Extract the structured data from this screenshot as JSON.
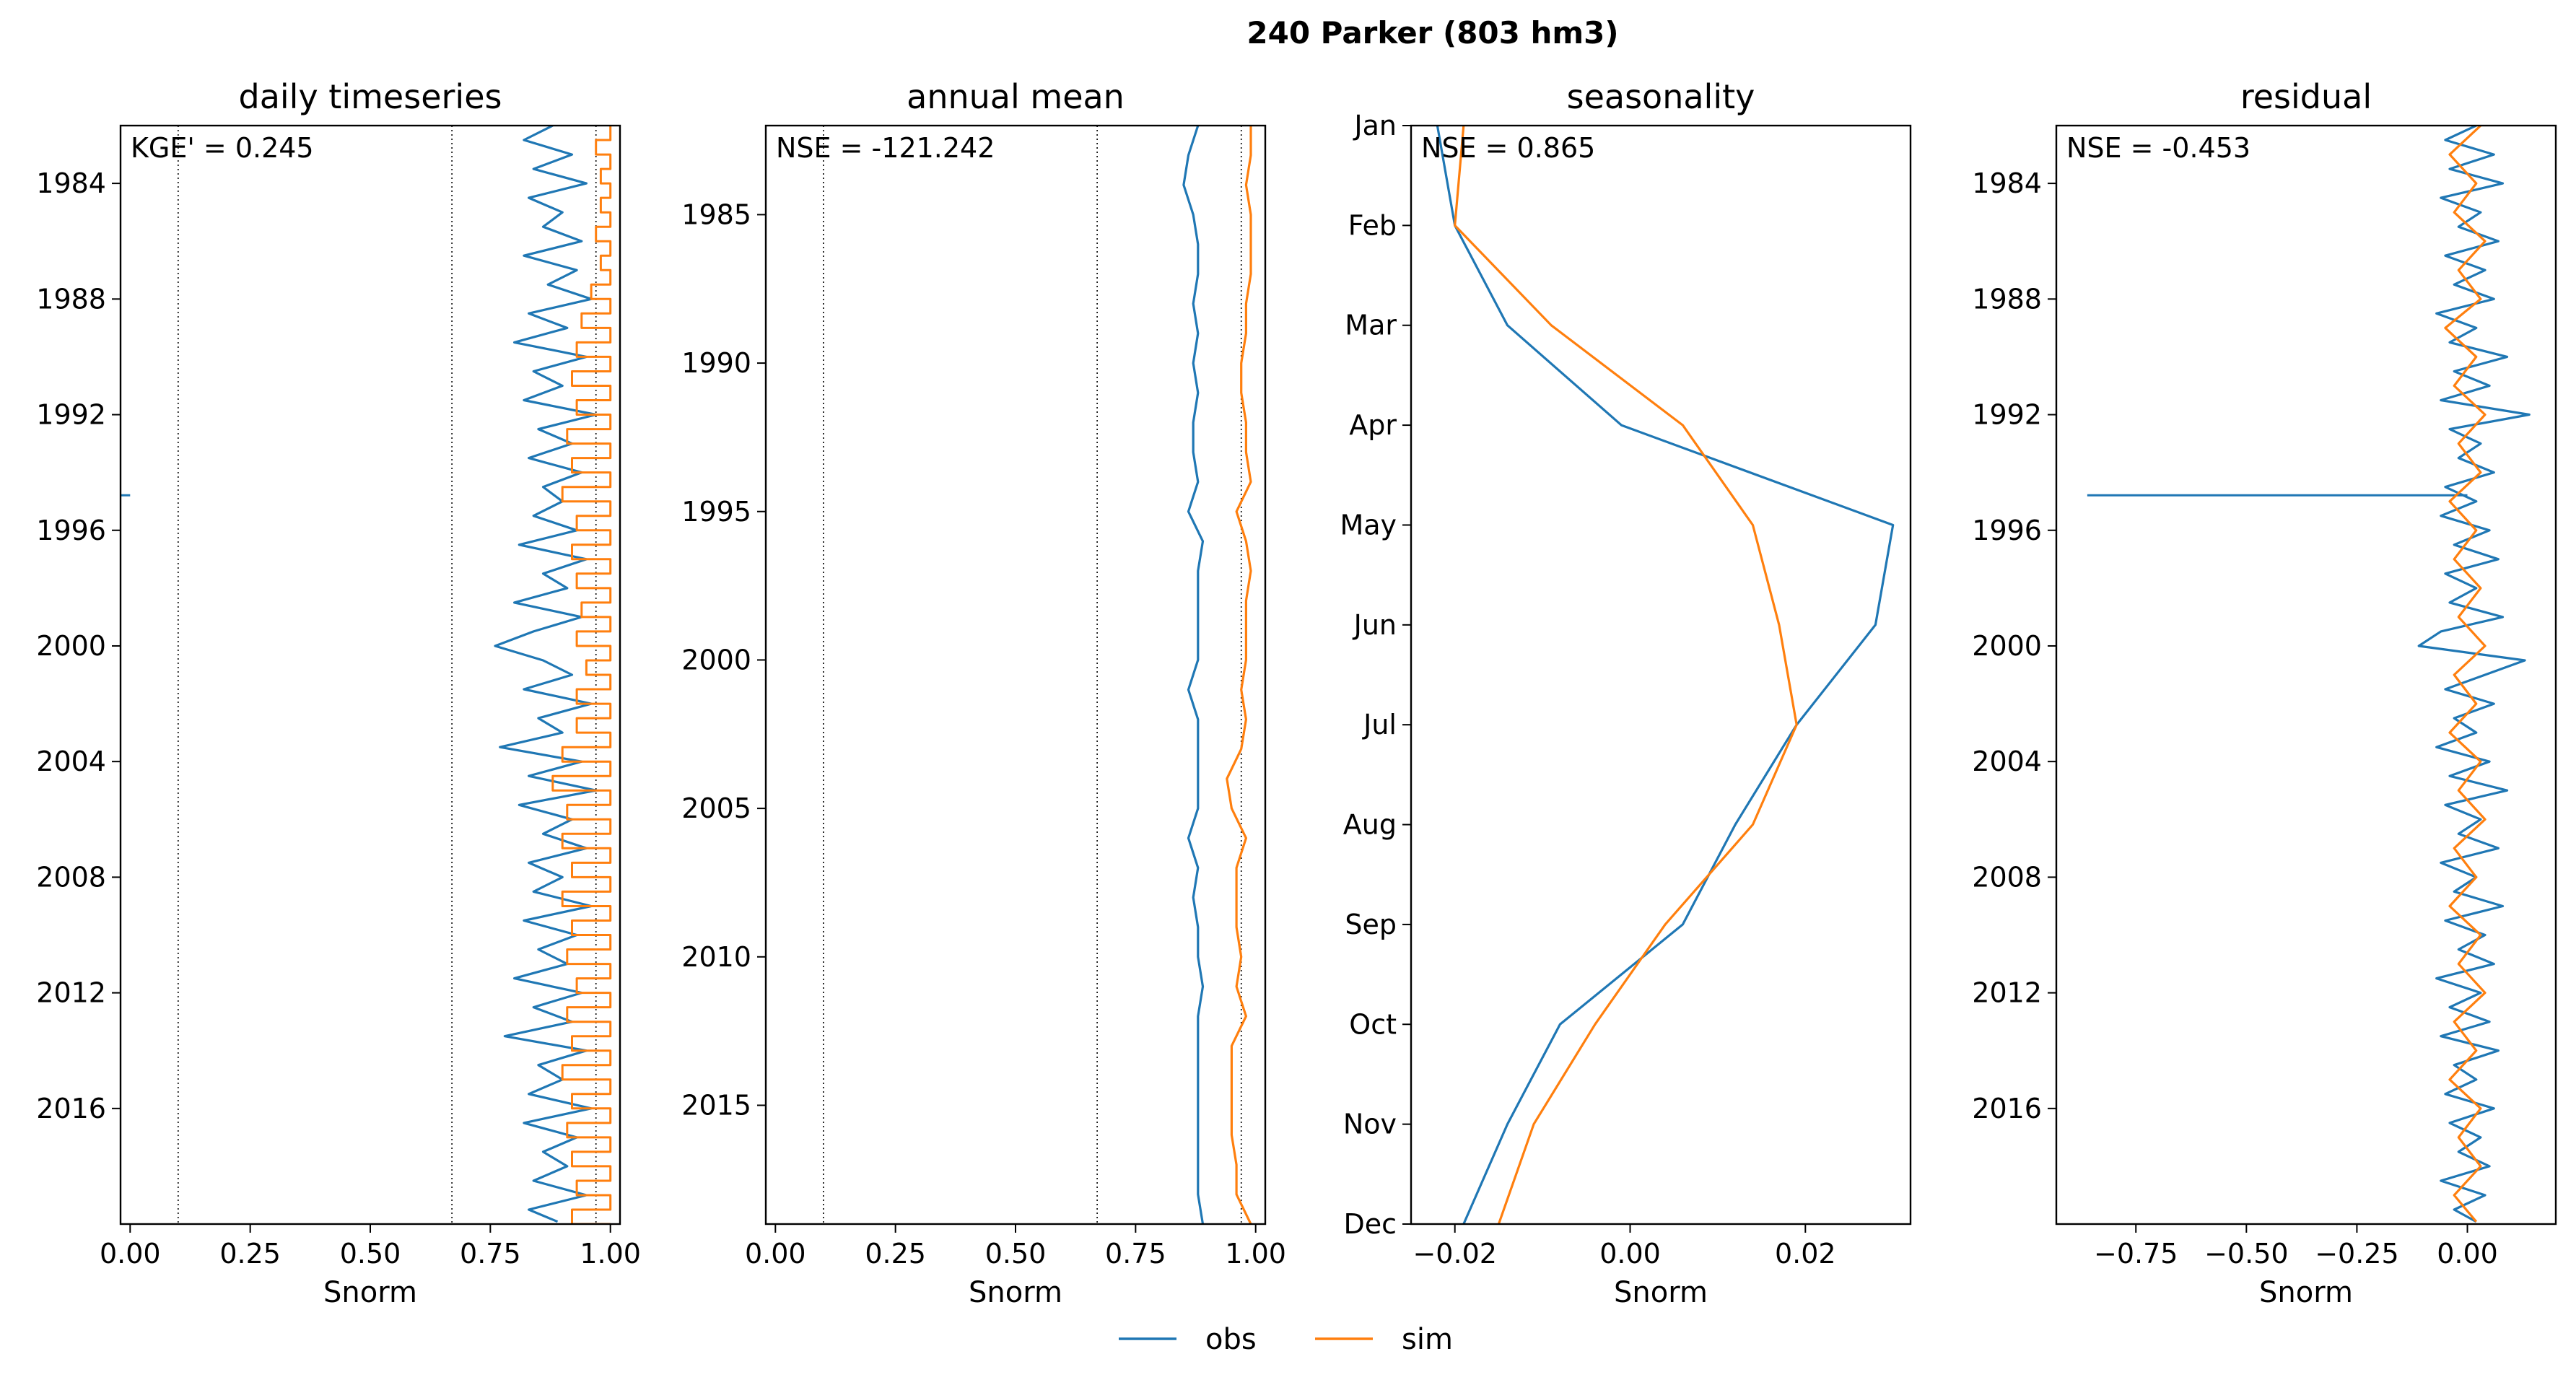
{
  "figure": {
    "suptitle": "240  Parker (803 hm3)",
    "legend": {
      "position": "bottom-center",
      "items": [
        "obs",
        "sim"
      ]
    },
    "colors": {
      "obs": "#1f77b4",
      "sim": "#ff7f0e"
    }
  },
  "chart_data": [
    {
      "type": "line",
      "title": "daily timeseries",
      "xlabel": "Snorm",
      "ylabel": "",
      "metric": "KGE' = 0.245",
      "xlim": [
        -0.02,
        1.02
      ],
      "ylim": [
        "2019-12-31",
        "1982-01-01"
      ],
      "xticks": [
        "0.00",
        "0.25",
        "0.50",
        "0.75",
        "1.00"
      ],
      "yticks": [
        "1984",
        "1988",
        "1992",
        "1996",
        "2000",
        "2004",
        "2008",
        "2012",
        "2016"
      ],
      "vlines": [
        0.1,
        0.67,
        0.97
      ],
      "series": [
        {
          "name": "obs",
          "y": [
            "1982-01",
            "1982-07",
            "1983-01",
            "1983-07",
            "1984-01",
            "1984-07",
            "1985-01",
            "1985-07",
            "1986-01",
            "1986-07",
            "1987-01",
            "1987-07",
            "1988-01",
            "1988-07",
            "1989-01",
            "1989-07",
            "1990-01",
            "1990-07",
            "1991-01",
            "1991-07",
            "1992-01",
            "1992-07",
            "1993-01",
            "1993-07",
            "1994-01",
            "1994-07",
            "1995-01",
            "1995-07",
            "1996-01",
            "1996-07",
            "1997-01",
            "1997-07",
            "1998-01",
            "1998-07",
            "1999-01",
            "1999-07",
            "2000-01",
            "2000-07",
            "2001-01",
            "2001-07",
            "2002-01",
            "2002-07",
            "2003-01",
            "2003-07",
            "2004-01",
            "2004-07",
            "2005-01",
            "2005-07",
            "2006-01",
            "2006-07",
            "2007-01",
            "2007-07",
            "2008-01",
            "2008-07",
            "2009-01",
            "2009-07",
            "2010-01",
            "2010-07",
            "2011-01",
            "2011-07",
            "2012-01",
            "2012-07",
            "2013-01",
            "2013-07",
            "2014-01",
            "2014-07",
            "2015-01",
            "2015-07",
            "2016-01",
            "2016-07",
            "2017-01",
            "2017-07",
            "2018-01",
            "2018-07",
            "2019-01",
            "2019-07",
            "2019-12"
          ],
          "x": [
            0.88,
            0.82,
            0.92,
            0.84,
            0.95,
            0.83,
            0.9,
            0.86,
            0.94,
            0.82,
            0.93,
            0.87,
            0.96,
            0.83,
            0.91,
            0.8,
            0.95,
            0.84,
            0.9,
            0.82,
            0.97,
            0.85,
            0.92,
            0.83,
            0.94,
            0.86,
            0.9,
            0.84,
            0.93,
            0.81,
            0.95,
            0.86,
            0.91,
            0.8,
            0.94,
            0.84,
            0.76,
            0.86,
            0.92,
            0.82,
            0.96,
            0.85,
            0.9,
            0.77,
            0.94,
            0.83,
            0.97,
            0.81,
            0.92,
            0.86,
            0.95,
            0.83,
            0.9,
            0.84,
            0.96,
            0.82,
            0.93,
            0.85,
            0.91,
            0.8,
            0.94,
            0.84,
            0.92,
            0.78,
            0.95,
            0.85,
            0.9,
            0.83,
            0.96,
            0.82,
            0.93,
            0.86,
            0.91,
            0.84,
            0.95,
            0.83,
            0.89
          ],
          "spike": {
            "date": "1994-10-15",
            "value": -0.02
          }
        },
        {
          "name": "sim",
          "y": [
            "1982",
            "1983",
            "1984",
            "1985",
            "1986",
            "1987",
            "1988",
            "1989",
            "1990",
            "1991",
            "1992",
            "1993",
            "1994",
            "1995",
            "1996",
            "1997",
            "1998",
            "1999",
            "2000",
            "2001",
            "2002",
            "2003",
            "2004",
            "2005",
            "2006",
            "2007",
            "2008",
            "2009",
            "2010",
            "2011",
            "2012",
            "2013",
            "2014",
            "2015",
            "2016",
            "2017",
            "2018",
            "2019"
          ],
          "low": [
            0.97,
            0.98,
            0.98,
            0.97,
            0.98,
            0.96,
            0.94,
            0.93,
            0.92,
            0.93,
            0.91,
            0.92,
            0.9,
            0.93,
            0.92,
            0.93,
            0.94,
            0.93,
            0.95,
            0.93,
            0.93,
            0.9,
            0.88,
            0.91,
            0.9,
            0.92,
            0.9,
            0.92,
            0.91,
            0.93,
            0.91,
            0.92,
            0.9,
            0.92,
            0.91,
            0.92,
            0.93,
            0.92
          ],
          "high": [
            1.0,
            1.0,
            1.0,
            1.0,
            1.0,
            1.0,
            1.0,
            1.0,
            1.0,
            1.0,
            1.0,
            1.0,
            1.0,
            1.0,
            1.0,
            1.0,
            1.0,
            1.0,
            1.0,
            1.0,
            1.0,
            1.0,
            1.0,
            1.0,
            1.0,
            1.0,
            1.0,
            1.0,
            1.0,
            1.0,
            1.0,
            1.0,
            1.0,
            1.0,
            1.0,
            1.0,
            1.0,
            1.0
          ]
        }
      ]
    },
    {
      "type": "line",
      "title": "annual mean",
      "xlabel": "Snorm",
      "ylabel": "",
      "metric": "NSE = -121.242",
      "xlim": [
        -0.02,
        1.02
      ],
      "ylim": [
        2019,
        1982
      ],
      "xticks": [
        "0.00",
        "0.25",
        "0.50",
        "0.75",
        "1.00"
      ],
      "yticks": [
        "1985",
        "1990",
        "1995",
        "2000",
        "2005",
        "2010",
        "2015"
      ],
      "vlines": [
        0.1,
        0.67,
        0.97
      ],
      "series": [
        {
          "name": "obs",
          "y": [
            1982,
            1983,
            1984,
            1985,
            1986,
            1987,
            1988,
            1989,
            1990,
            1991,
            1992,
            1993,
            1994,
            1995,
            1996,
            1997,
            1998,
            1999,
            2000,
            2001,
            2002,
            2003,
            2004,
            2005,
            2006,
            2007,
            2008,
            2009,
            2010,
            2011,
            2012,
            2013,
            2014,
            2015,
            2016,
            2017,
            2018,
            2019
          ],
          "x": [
            0.88,
            0.86,
            0.85,
            0.87,
            0.88,
            0.88,
            0.87,
            0.88,
            0.87,
            0.88,
            0.87,
            0.87,
            0.88,
            0.86,
            0.89,
            0.88,
            0.88,
            0.88,
            0.88,
            0.86,
            0.88,
            0.88,
            0.88,
            0.88,
            0.86,
            0.88,
            0.87,
            0.88,
            0.88,
            0.89,
            0.88,
            0.88,
            0.88,
            0.88,
            0.88,
            0.88,
            0.88,
            0.89
          ]
        },
        {
          "name": "sim",
          "y": [
            1982,
            1983,
            1984,
            1985,
            1986,
            1987,
            1988,
            1989,
            1990,
            1991,
            1992,
            1993,
            1994,
            1995,
            1996,
            1997,
            1998,
            1999,
            2000,
            2001,
            2002,
            2003,
            2004,
            2005,
            2006,
            2007,
            2008,
            2009,
            2010,
            2011,
            2012,
            2013,
            2014,
            2015,
            2016,
            2017,
            2018,
            2019
          ],
          "x": [
            0.99,
            0.99,
            0.98,
            0.99,
            0.99,
            0.99,
            0.98,
            0.98,
            0.97,
            0.97,
            0.98,
            0.98,
            0.99,
            0.96,
            0.98,
            0.99,
            0.98,
            0.98,
            0.98,
            0.97,
            0.98,
            0.97,
            0.94,
            0.95,
            0.98,
            0.96,
            0.96,
            0.96,
            0.97,
            0.96,
            0.98,
            0.95,
            0.95,
            0.95,
            0.95,
            0.96,
            0.96,
            0.99
          ]
        }
      ]
    },
    {
      "type": "line",
      "title": "seasonality",
      "xlabel": "Snorm",
      "ylabel": "",
      "metric": "NSE = 0.865",
      "xlim": [
        -0.025,
        0.032
      ],
      "ylim": [
        "Dec",
        "Jan"
      ],
      "xticks": [
        "−0.02",
        "0.00",
        "0.02"
      ],
      "yticks": [
        "Jan",
        "Feb",
        "Mar",
        "Apr",
        "May",
        "Jun",
        "Jul",
        "Aug",
        "Sep",
        "Oct",
        "Nov",
        "Dec"
      ],
      "categories": [
        "Jan",
        "Feb",
        "Mar",
        "Apr",
        "May",
        "Jun",
        "Jul",
        "Aug",
        "Sep",
        "Oct",
        "Nov",
        "Dec"
      ],
      "series": [
        {
          "name": "obs",
          "values": [
            -0.022,
            -0.02,
            -0.014,
            -0.001,
            0.03,
            0.028,
            0.019,
            0.012,
            0.006,
            -0.008,
            -0.014,
            -0.019
          ]
        },
        {
          "name": "sim",
          "values": [
            -0.019,
            -0.02,
            -0.009,
            0.006,
            0.014,
            0.017,
            0.019,
            0.014,
            0.004,
            -0.004,
            -0.011,
            -0.015
          ]
        }
      ]
    },
    {
      "type": "line",
      "title": "residual",
      "xlabel": "Snorm",
      "ylabel": "",
      "metric": "NSE = -0.453",
      "xlim": [
        -0.93,
        0.2
      ],
      "ylim": [
        "2019-12-31",
        "1982-01-01"
      ],
      "xticks": [
        "−0.75",
        "−0.50",
        "−0.25",
        "0.00"
      ],
      "yticks": [
        "1984",
        "1988",
        "1992",
        "1996",
        "2000",
        "2004",
        "2008",
        "2012",
        "2016"
      ],
      "series": [
        {
          "name": "obs",
          "y": [
            "1982-01",
            "1982-07",
            "1983-01",
            "1983-07",
            "1984-01",
            "1984-07",
            "1985-01",
            "1985-07",
            "1986-01",
            "1986-07",
            "1987-01",
            "1987-07",
            "1988-01",
            "1988-07",
            "1989-01",
            "1989-07",
            "1990-01",
            "1990-07",
            "1991-01",
            "1991-07",
            "1992-01",
            "1992-07",
            "1993-01",
            "1993-07",
            "1994-01",
            "1994-07",
            "1995-01",
            "1995-07",
            "1996-01",
            "1996-07",
            "1997-01",
            "1997-07",
            "1998-01",
            "1998-07",
            "1999-01",
            "1999-07",
            "2000-01",
            "2000-07",
            "2001-01",
            "2001-07",
            "2002-01",
            "2002-07",
            "2003-01",
            "2003-07",
            "2004-01",
            "2004-07",
            "2005-01",
            "2005-07",
            "2006-01",
            "2006-07",
            "2007-01",
            "2007-07",
            "2008-01",
            "2008-07",
            "2009-01",
            "2009-07",
            "2010-01",
            "2010-07",
            "2011-01",
            "2011-07",
            "2012-01",
            "2012-07",
            "2013-01",
            "2013-07",
            "2014-01",
            "2014-07",
            "2015-01",
            "2015-07",
            "2016-01",
            "2016-07",
            "2017-01",
            "2017-07",
            "2018-01",
            "2018-07",
            "2019-01",
            "2019-07",
            "2019-12"
          ],
          "x": [
            0.02,
            -0.05,
            0.06,
            -0.04,
            0.08,
            -0.06,
            0.03,
            -0.02,
            0.07,
            -0.05,
            0.04,
            -0.03,
            0.06,
            -0.07,
            0.02,
            -0.04,
            0.09,
            -0.03,
            0.05,
            -0.06,
            0.14,
            -0.04,
            0.03,
            -0.02,
            0.06,
            -0.05,
            0.02,
            -0.06,
            0.05,
            -0.03,
            0.07,
            -0.05,
            0.02,
            -0.04,
            0.08,
            -0.06,
            -0.11,
            0.13,
            0.04,
            -0.05,
            0.06,
            -0.03,
            0.02,
            -0.07,
            0.05,
            -0.04,
            0.09,
            -0.05,
            0.03,
            -0.02,
            0.07,
            -0.06,
            0.02,
            -0.03,
            0.08,
            -0.05,
            0.04,
            -0.02,
            0.06,
            -0.07,
            0.03,
            -0.04,
            0.05,
            -0.06,
            0.07,
            -0.03,
            0.02,
            -0.05,
            0.06,
            -0.04,
            0.03,
            -0.02,
            0.05,
            -0.06,
            0.04,
            -0.03,
            0.02
          ],
          "spike": {
            "date": "1994-10-15",
            "value": -0.86
          }
        },
        {
          "name": "sim",
          "y": [
            "1982-01",
            "1983-01",
            "1984-01",
            "1985-01",
            "1986-01",
            "1987-01",
            "1988-01",
            "1989-01",
            "1990-01",
            "1991-01",
            "1992-01",
            "1993-01",
            "1994-01",
            "1995-01",
            "1996-01",
            "1997-01",
            "1998-01",
            "1999-01",
            "2000-01",
            "2001-01",
            "2002-01",
            "2003-01",
            "2004-01",
            "2005-01",
            "2006-01",
            "2007-01",
            "2008-01",
            "2009-01",
            "2010-01",
            "2011-01",
            "2012-01",
            "2013-01",
            "2014-01",
            "2015-01",
            "2016-01",
            "2017-01",
            "2018-01",
            "2019-01",
            "2019-12"
          ],
          "x": [
            0.03,
            -0.04,
            0.02,
            -0.03,
            0.04,
            -0.02,
            0.03,
            -0.05,
            0.02,
            -0.03,
            0.04,
            -0.02,
            0.03,
            -0.04,
            0.02,
            -0.03,
            0.03,
            -0.02,
            0.04,
            -0.03,
            0.02,
            -0.04,
            0.03,
            -0.02,
            0.04,
            -0.03,
            0.02,
            -0.04,
            0.03,
            -0.02,
            0.04,
            -0.03,
            0.02,
            -0.04,
            0.03,
            -0.02,
            0.03,
            -0.03,
            0.02
          ]
        }
      ]
    }
  ]
}
